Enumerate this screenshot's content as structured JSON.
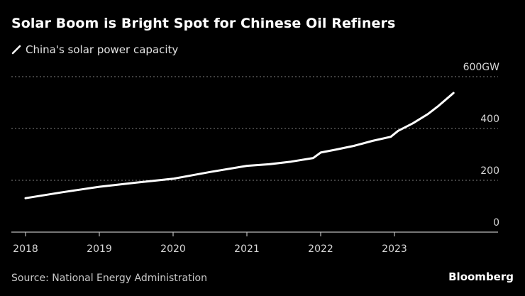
{
  "header": {
    "title": "Solar Boom is Bright Spot for Chinese Oil Refiners",
    "legend_label": "China's solar power capacity"
  },
  "footer": {
    "source": "Source: National Energy Administration",
    "brand": "Bloomberg"
  },
  "colors": {
    "background": "#000000",
    "line": "#ffffff",
    "grid": "#666666",
    "axis": "#bbbbbb"
  },
  "chart_data": {
    "type": "line",
    "title": "Solar Boom is Bright Spot for Chinese Oil Refiners",
    "xlabel": "",
    "ylabel": "",
    "unit": "GW",
    "xlim": [
      2018.0,
      2024.4
    ],
    "ylim": [
      0,
      600
    ],
    "y_ticks": [
      0,
      200,
      400,
      600
    ],
    "y_tick_labels": [
      "0",
      "200",
      "400",
      "600GW"
    ],
    "x_ticks": [
      2018,
      2019,
      2020,
      2021,
      2022,
      2023
    ],
    "x_tick_labels": [
      "2018",
      "2019",
      "2020",
      "2021",
      "2022",
      "2023"
    ],
    "grid": true,
    "legend_position": "top-left",
    "series": [
      {
        "name": "China's solar power capacity",
        "x": [
          2018.0,
          2018.5,
          2019.0,
          2019.5,
          2020.0,
          2020.5,
          2021.0,
          2021.3,
          2021.6,
          2021.9,
          2022.0,
          2022.2,
          2022.45,
          2022.7,
          2022.95,
          2023.05,
          2023.25,
          2023.45,
          2023.6,
          2023.8
        ],
        "values": [
          131,
          154,
          175,
          191,
          206,
          232,
          256,
          262,
          272,
          286,
          307,
          318,
          333,
          352,
          368,
          391,
          420,
          455,
          488,
          537
        ]
      }
    ]
  }
}
